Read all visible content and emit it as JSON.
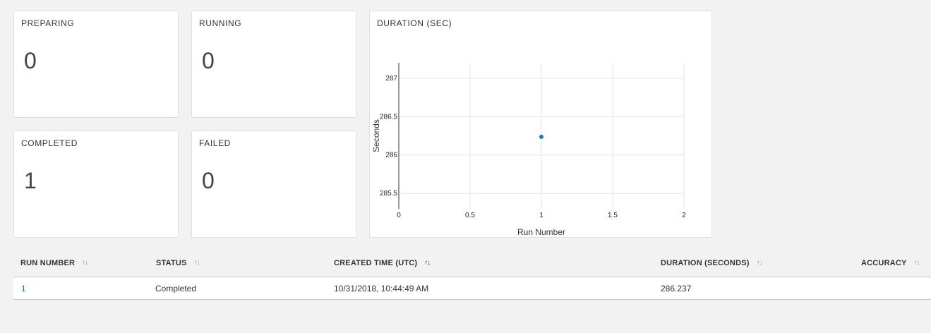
{
  "cards": {
    "preparing": {
      "title": "PREPARING",
      "value": "0"
    },
    "running": {
      "title": "RUNNING",
      "value": "0"
    },
    "completed": {
      "title": "COMPLETED",
      "value": "1"
    },
    "failed": {
      "title": "FAILED",
      "value": "0"
    }
  },
  "chart": {
    "card_title": "DURATION (SEC)"
  },
  "chart_data": {
    "type": "scatter",
    "title": "DURATION (SEC)",
    "xlabel": "Run Number",
    "ylabel": "Seconds",
    "x": [
      1
    ],
    "y": [
      286.237
    ],
    "xlim": [
      0,
      2
    ],
    "ylim": [
      285.3,
      287.2
    ],
    "xticks": [
      0,
      0.5,
      1,
      1.5,
      2
    ],
    "xtick_labels": [
      "0",
      "0.5",
      "1",
      "1.5",
      "2"
    ],
    "yticks": [
      285.5,
      286,
      286.5,
      287
    ],
    "ytick_labels": [
      "285.5",
      "286",
      "286.5",
      "287"
    ],
    "grid": true,
    "point_color": "#1f77b4"
  },
  "table": {
    "columns": [
      {
        "label": "RUN NUMBER",
        "sort": "↑↓"
      },
      {
        "label": "STATUS",
        "sort": "↑↓"
      },
      {
        "label": "CREATED TIME (UTC)",
        "sort": "↑↓"
      },
      {
        "label": "DURATION (SECONDS)",
        "sort": "↑↓"
      },
      {
        "label": "ACCURACY",
        "sort": "↑↓"
      }
    ],
    "rows": [
      {
        "run_number": "1",
        "status": "Completed",
        "created": "10/31/2018, 10:44:49 AM",
        "duration": "286.237",
        "accuracy": ""
      }
    ]
  },
  "colors": {
    "link": "#0e6bc0",
    "point": "#1f77b4"
  }
}
